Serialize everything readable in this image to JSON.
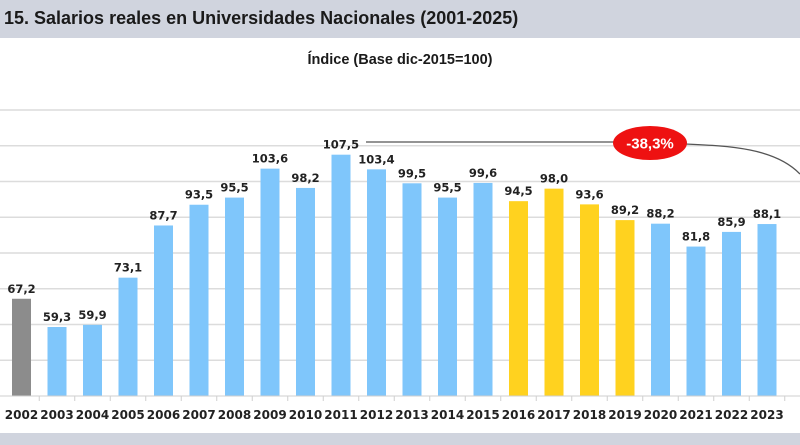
{
  "header": {
    "title": "15. Salarios reales en Universidades Nacionales (2001-2025)"
  },
  "chart_data": {
    "type": "bar",
    "title": "15. Salarios reales en Universidades Nacionales (2001-2025)",
    "subtitle": "Índice (Base dic-2015=100)",
    "xlabel": "",
    "ylabel": "",
    "ylim": [
      40,
      120
    ],
    "grid": true,
    "categories": [
      "2002",
      "2003",
      "2004",
      "2005",
      "2006",
      "2007",
      "2008",
      "2009",
      "2010",
      "2011",
      "2012",
      "2013",
      "2014",
      "2015",
      "2016",
      "2017",
      "2018",
      "2019",
      "2020",
      "2021",
      "2022",
      "2023"
    ],
    "values": [
      67.2,
      59.3,
      59.9,
      73.1,
      87.7,
      93.5,
      95.5,
      103.6,
      98.2,
      107.5,
      103.4,
      99.5,
      95.5,
      99.6,
      94.5,
      98.0,
      93.6,
      89.2,
      88.2,
      81.8,
      85.9,
      88.1
    ],
    "labels": [
      "67,2",
      "59,3",
      "59,9",
      "73,1",
      "87,7",
      "93,5",
      "95,5",
      "103,6",
      "98,2",
      "107,5",
      "103,4",
      "99,5",
      "95,5",
      "99,6",
      "94,5",
      "98,0",
      "93,6",
      "89,2",
      "88,2",
      "81,8",
      "85,9",
      "88,1"
    ],
    "colors": [
      "#8c8c8c",
      "#7fc6fb",
      "#7fc6fb",
      "#7fc6fb",
      "#7fc6fb",
      "#7fc6fb",
      "#7fc6fb",
      "#7fc6fb",
      "#7fc6fb",
      "#7fc6fb",
      "#7fc6fb",
      "#7fc6fb",
      "#7fc6fb",
      "#7fc6fb",
      "#ffd21f",
      "#ffd21f",
      "#ffd21f",
      "#ffd21f",
      "#7fc6fb",
      "#7fc6fb",
      "#7fc6fb",
      "#7fc6fb"
    ],
    "annotation": {
      "text": "-38,3%",
      "color": "#ee1111",
      "from_category": "2011"
    }
  }
}
